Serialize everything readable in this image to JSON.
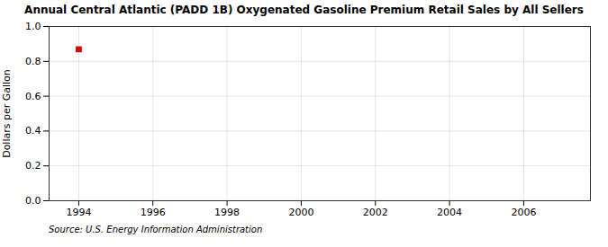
{
  "chart_data": {
    "type": "scatter",
    "title": "Annual Central Atlantic (PADD 1B) Oxygenated Gasoline Premium Retail Sales by All Sellers",
    "ylabel": "Dollars per Gallon",
    "caption": "Source: U.S. Energy Information Administration",
    "x": [
      1994
    ],
    "values": [
      0.869
    ],
    "color": "#cc1111",
    "marker": "square",
    "xlim": [
      1993.2,
      2007.8
    ],
    "xticks": [
      1994,
      1996,
      1998,
      2000,
      2002,
      2004,
      2006
    ],
    "ylim": [
      0.0,
      1.0
    ],
    "yticks": [
      {
        "value": 0.0,
        "label": "0.0"
      },
      0.2,
      0.4,
      0.6,
      0.8,
      {
        "value": 1.0,
        "label": "1.0"
      }
    ],
    "grid": true
  }
}
